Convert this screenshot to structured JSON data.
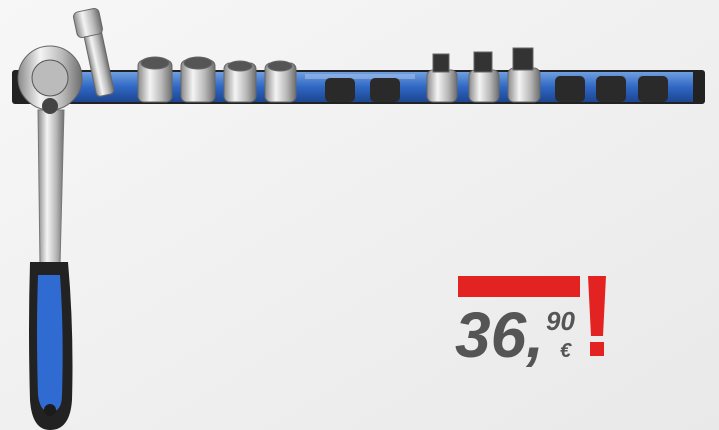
{
  "price": {
    "whole": "36,",
    "cents": "90",
    "currency": "€"
  }
}
